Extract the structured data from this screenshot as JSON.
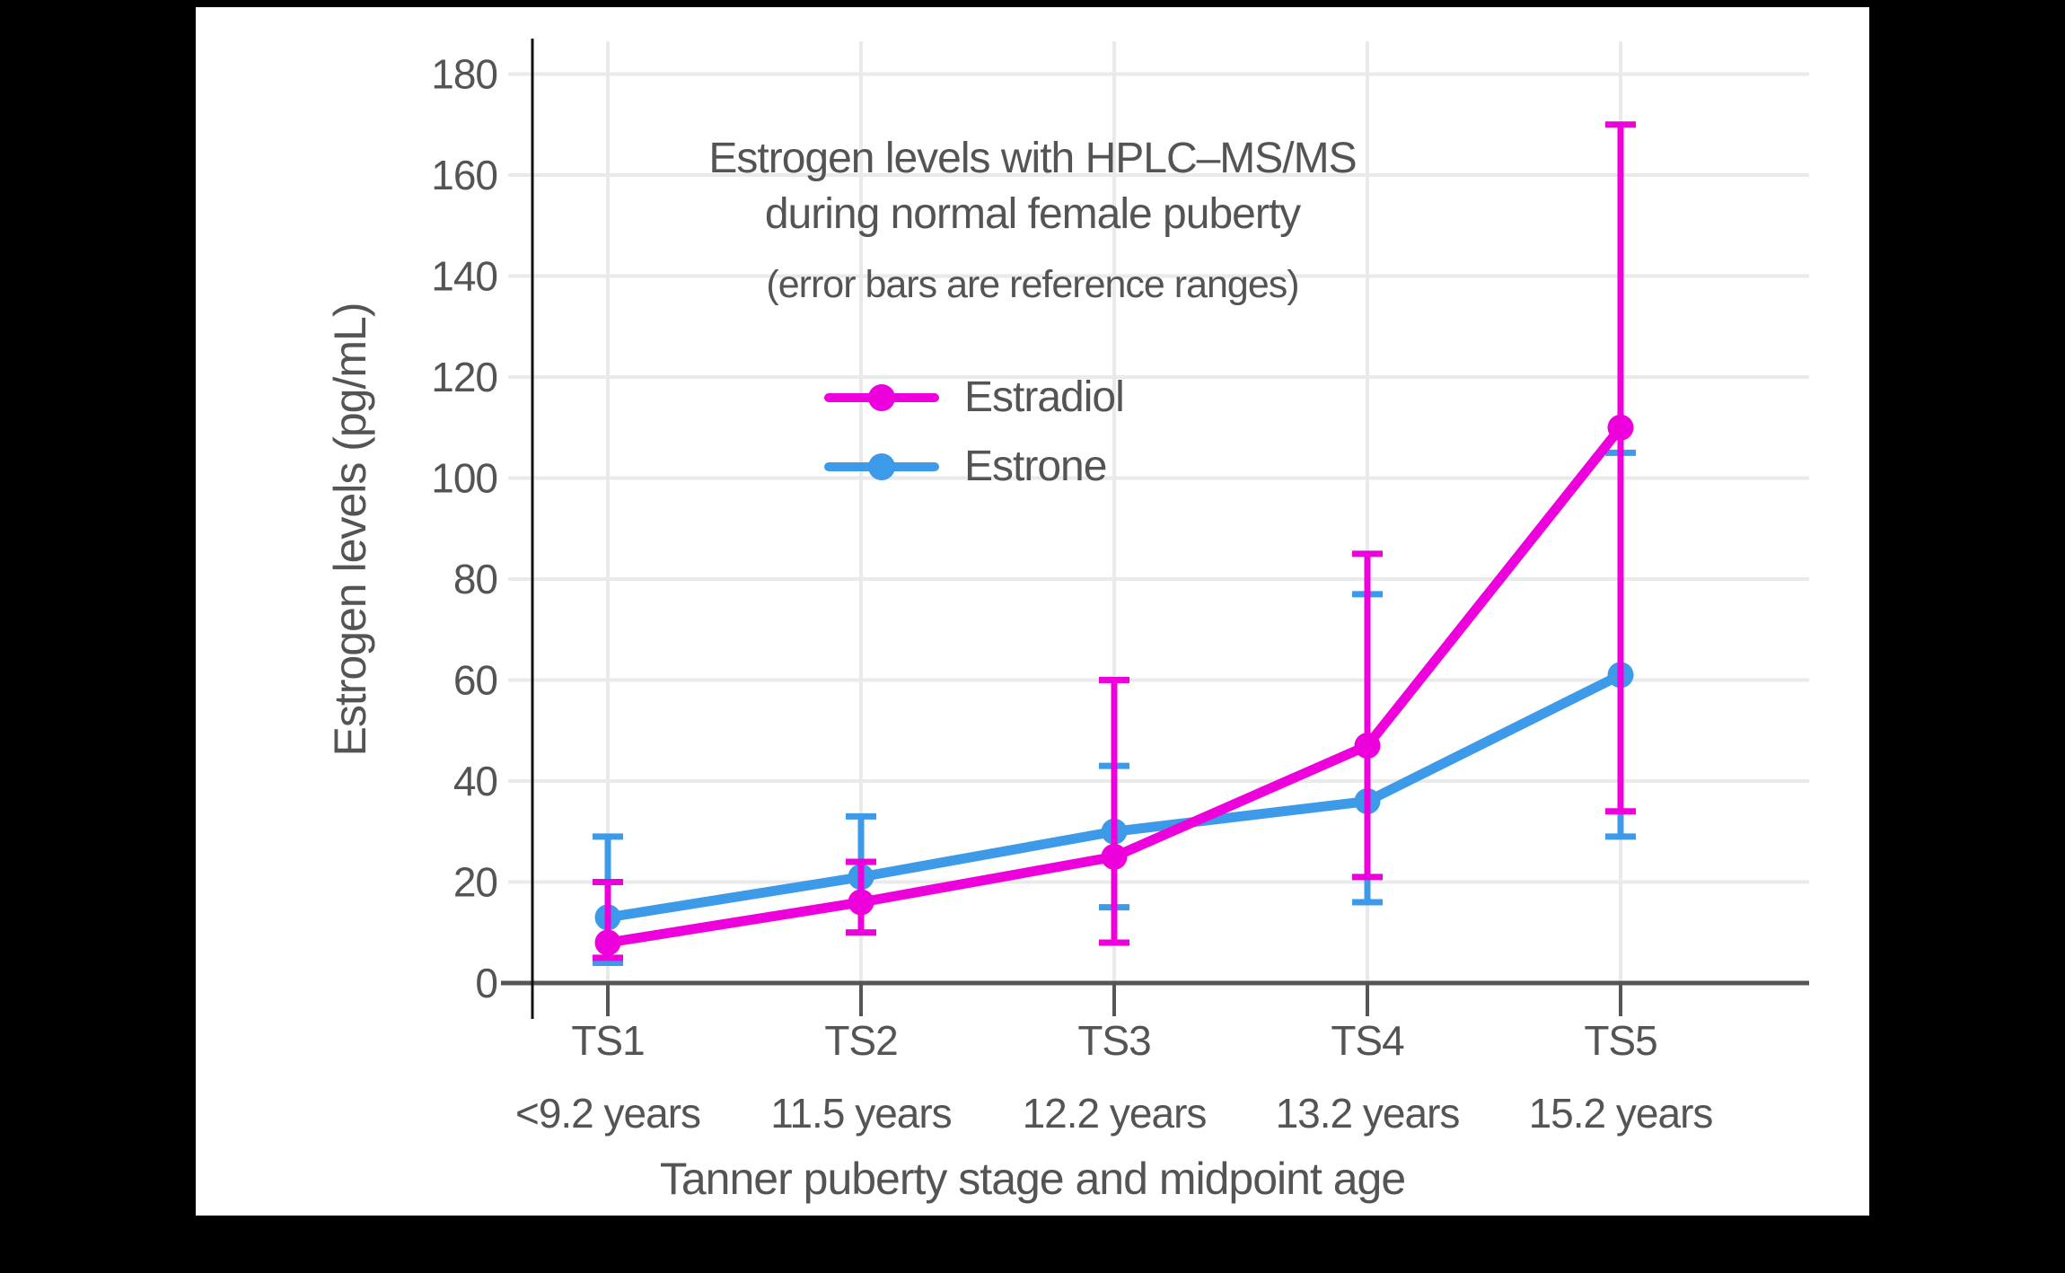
{
  "frame": {
    "background": "#000000",
    "canvas_background": "#ffffff"
  },
  "title": {
    "line1": "Estrogen levels with HPLC–MS/MS",
    "line2": "during normal female puberty",
    "subtitle": "(error bars are reference ranges)"
  },
  "legend": [
    {
      "label": "Estradiol",
      "color": "#EE00DD"
    },
    {
      "label": "Estrone",
      "color": "#3D9AE8"
    }
  ],
  "axes": {
    "y_title": "Estrogen levels (pg/mL)",
    "x_title": "Tanner puberty stage and midpoint age"
  },
  "colors": {
    "estradiol": "#EE00DD",
    "estrone": "#3D9AE8",
    "grid": "#EAEAEA",
    "x_axis": "#555555",
    "y_axis": "#111111",
    "text": "#545454"
  },
  "chart_data": {
    "type": "line",
    "title": "Estrogen levels with HPLC–MS/MS during normal female puberty",
    "subtitle": "(error bars are reference ranges)",
    "xlabel": "Tanner puberty stage and midpoint age",
    "ylabel": "Estrogen levels (pg/mL)",
    "ylim": [
      0,
      180
    ],
    "y_tick_step": 20,
    "y_ticks": [
      0,
      20,
      40,
      60,
      80,
      100,
      120,
      140,
      160,
      180
    ],
    "grid": true,
    "legend_position": "upper-center-inside",
    "categories": [
      "TS1",
      "TS2",
      "TS3",
      "TS4",
      "TS5"
    ],
    "category_sublabels": [
      "<9.2 years",
      "11.5 years",
      "12.2 years",
      "13.2 years",
      "15.2 years"
    ],
    "error_bar_meaning": "reference ranges",
    "series": [
      {
        "name": "Estrone",
        "color": "#3D9AE8",
        "values": [
          13,
          21,
          30,
          36,
          61
        ],
        "range_low": [
          4,
          10,
          15,
          16,
          29
        ],
        "range_high": [
          29,
          33,
          43,
          77,
          105
        ]
      },
      {
        "name": "Estradiol",
        "color": "#EE00DD",
        "values": [
          8,
          16,
          25,
          47,
          110
        ],
        "range_low": [
          5,
          10,
          8,
          21,
          34
        ],
        "range_high": [
          20,
          24,
          60,
          85,
          170
        ]
      }
    ],
    "legend_order": [
      "Estradiol",
      "Estrone"
    ]
  }
}
